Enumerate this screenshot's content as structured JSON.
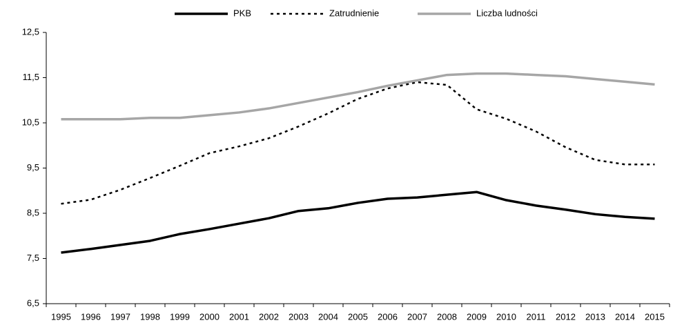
{
  "chart_data": {
    "type": "line",
    "categories": [
      "1995",
      "1996",
      "1997",
      "1998",
      "1999",
      "2000",
      "2001",
      "2002",
      "2003",
      "2004",
      "2005",
      "2006",
      "2007",
      "2008",
      "2009",
      "2010",
      "2011",
      "2012",
      "2013",
      "2014",
      "2015"
    ],
    "series": [
      {
        "name": "PKB",
        "color": "#000000",
        "style": "solid",
        "values": [
          7.63,
          7.71,
          7.8,
          7.89,
          8.04,
          8.15,
          8.27,
          8.39,
          8.55,
          8.61,
          8.73,
          8.82,
          8.85,
          8.91,
          8.97,
          8.79,
          8.67,
          8.58,
          8.48,
          8.42,
          8.38
        ]
      },
      {
        "name": "Zatrudnienie",
        "color": "#000000",
        "style": "dotted",
        "values": [
          8.71,
          8.8,
          9.02,
          9.28,
          9.55,
          9.83,
          9.98,
          10.16,
          10.42,
          10.71,
          11.03,
          11.26,
          11.4,
          11.34,
          10.8,
          10.59,
          10.31,
          9.96,
          9.68,
          9.58,
          9.58
        ]
      },
      {
        "name": "Liczba ludności",
        "color": "#a6a6a6",
        "style": "solid",
        "values": [
          10.58,
          10.58,
          10.58,
          10.61,
          10.61,
          10.67,
          10.73,
          10.82,
          10.94,
          11.06,
          11.18,
          11.32,
          11.44,
          11.56,
          11.59,
          11.59,
          11.56,
          11.53,
          11.47,
          11.41,
          11.35
        ]
      }
    ],
    "ylim": [
      6.5,
      12.5
    ],
    "yticks": [
      {
        "value": 6.5,
        "label": "6,5"
      },
      {
        "value": 7.5,
        "label": "7,5"
      },
      {
        "value": 8.5,
        "label": "8,5"
      },
      {
        "value": 9.5,
        "label": "9,5"
      },
      {
        "value": 10.5,
        "label": "10,5"
      },
      {
        "value": 11.5,
        "label": "11,5"
      },
      {
        "value": 12.5,
        "label": "12,5"
      }
    ],
    "grid": false,
    "legend": "top"
  }
}
